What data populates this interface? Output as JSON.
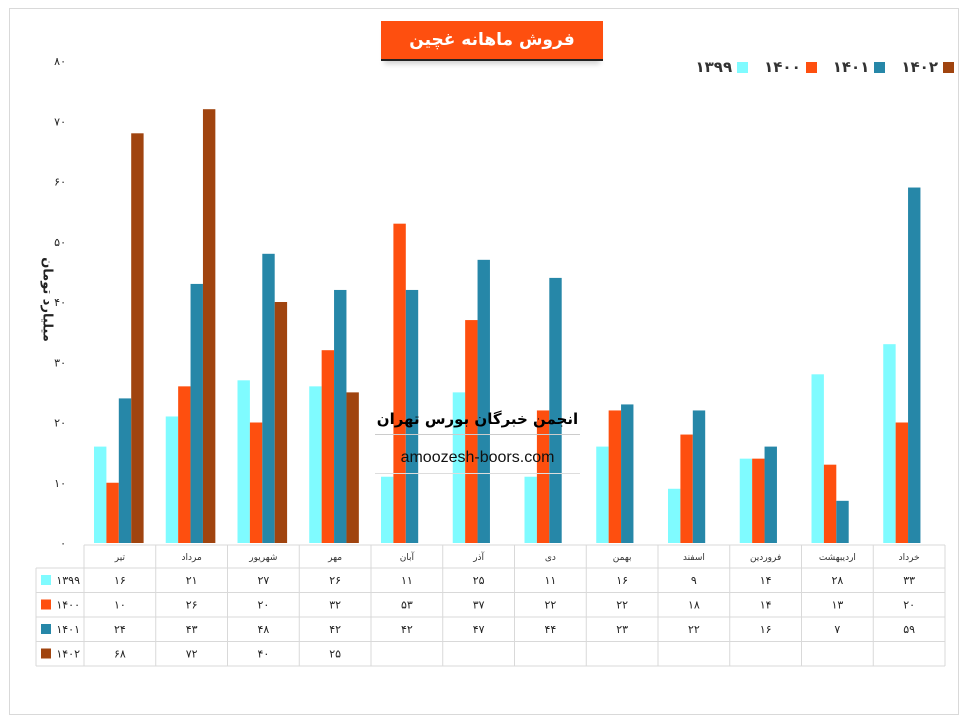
{
  "title": "فروش ماهانه غچین",
  "y_axis_label": "میلیارد تومان",
  "watermark": {
    "line1": "انجمن خبرگان بورس تهران",
    "line2": "amoozesh-boors.com"
  },
  "chart_data": {
    "type": "bar",
    "title": "فروش ماهانه غچین",
    "ylabel": "میلیارد تومان",
    "xlabel": "",
    "ylim": [
      0,
      80
    ],
    "yticks": [
      0,
      10,
      20,
      30,
      40,
      50,
      60,
      70,
      80
    ],
    "grid": false,
    "legend_position": "top-right",
    "categories": [
      "تیر",
      "مرداد",
      "شهریور",
      "مهر",
      "آبان",
      "آذر",
      "دی",
      "بهمن",
      "اسفند",
      "فروردین",
      "اردیبهشت",
      "خرداد"
    ],
    "series": [
      {
        "name": "۱۳۹۹",
        "color": "#7ffbff",
        "values": [
          16,
          21,
          27,
          26,
          11,
          25,
          11,
          16,
          9,
          14,
          28,
          33
        ]
      },
      {
        "name": "۱۴۰۰",
        "color": "#fe4f0f",
        "values": [
          10,
          26,
          20,
          32,
          53,
          37,
          22,
          22,
          18,
          14,
          13,
          20
        ]
      },
      {
        "name": "۱۴۰۱",
        "color": "#2687a8",
        "values": [
          24,
          43,
          48,
          42,
          42,
          47,
          44,
          23,
          22,
          16,
          7,
          59
        ]
      },
      {
        "name": "۱۴۰۲",
        "color": "#a0440f",
        "values": [
          68,
          72,
          40,
          25,
          null,
          null,
          null,
          null,
          null,
          null,
          null,
          null
        ]
      }
    ],
    "data_table": true
  }
}
